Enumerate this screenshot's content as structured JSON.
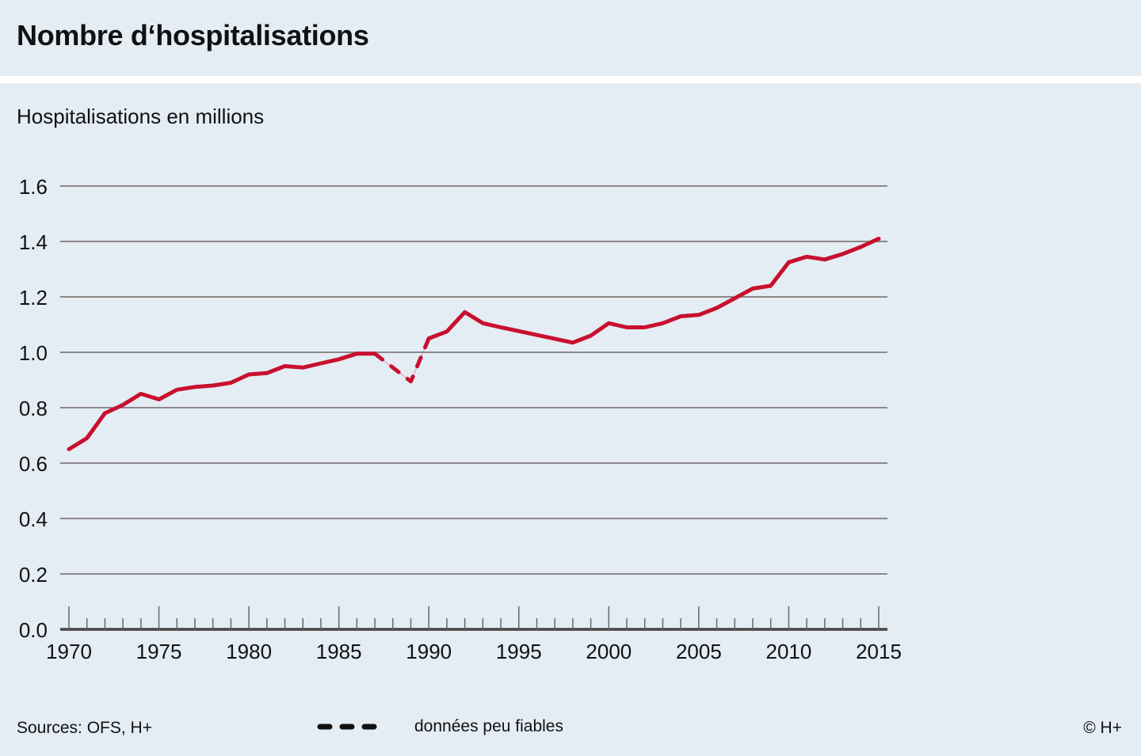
{
  "header": {
    "title": "Nombre d‘hospitalisations"
  },
  "colors": {
    "background": "#e4ecf4",
    "line": "#c8102e",
    "grid": "#6e6664",
    "axis": "#4a4442"
  },
  "chart_data": {
    "type": "line",
    "title": "Nombre d‘hospitalisations",
    "ylabel": "Hospitalisations en millions",
    "xlabel": "",
    "xlim": [
      1970,
      2015
    ],
    "ylim": [
      0,
      1.6
    ],
    "grid": true,
    "y_ticks": [
      "0.0",
      "0.2",
      "0.4",
      "0.6",
      "0.8",
      "1.0",
      "1.2",
      "1.4",
      "1.6"
    ],
    "y_tick_values": [
      0,
      0.2,
      0.4,
      0.6,
      0.8,
      1.0,
      1.2,
      1.4,
      1.6
    ],
    "x_ticks": [
      "1970",
      "1975",
      "1980",
      "1985",
      "1990",
      "1995",
      "2000",
      "2005",
      "2010",
      "2015"
    ],
    "x_tick_values": [
      1970,
      1975,
      1980,
      1985,
      1990,
      1995,
      2000,
      2005,
      2010,
      2015
    ],
    "series": [
      {
        "name": "Hospitalisations",
        "style": "solid",
        "x": [
          1970,
          1971,
          1972,
          1973,
          1974,
          1975,
          1976,
          1977,
          1978,
          1979,
          1980,
          1981,
          1982,
          1983,
          1984,
          1985,
          1986,
          1987
        ],
        "values": [
          0.65,
          0.69,
          0.78,
          0.81,
          0.85,
          0.83,
          0.865,
          0.875,
          0.88,
          0.89,
          0.92,
          0.925,
          0.95,
          0.945,
          0.96,
          0.975,
          0.995,
          0.995
        ]
      },
      {
        "name": "données peu fiables",
        "style": "dashed",
        "x": [
          1987,
          1988,
          1989,
          1990
        ],
        "values": [
          0.995,
          0.945,
          0.895,
          1.05
        ]
      },
      {
        "name": "Hospitalisations",
        "style": "solid",
        "x": [
          1990,
          1991,
          1992,
          1993,
          1994,
          1998,
          1999,
          2000,
          2001,
          2002,
          2003,
          2004,
          2005,
          2006,
          2007,
          2008,
          2009,
          2010,
          2011,
          2012,
          2013,
          2014,
          2015
        ],
        "values": [
          1.05,
          1.075,
          1.145,
          1.105,
          1.09,
          1.035,
          1.06,
          1.105,
          1.09,
          1.09,
          1.105,
          1.13,
          1.135,
          1.16,
          1.195,
          1.23,
          1.24,
          1.325,
          1.345,
          1.335,
          1.355,
          1.38,
          1.41
        ]
      }
    ],
    "legend": {
      "placement": "bottom",
      "entries": [
        {
          "label": "données peu fiables",
          "style": "dashed"
        }
      ]
    }
  },
  "footer": {
    "sources": "Sources: OFS, H+",
    "legend_label": "données peu fiables",
    "copyright": "© H+"
  }
}
